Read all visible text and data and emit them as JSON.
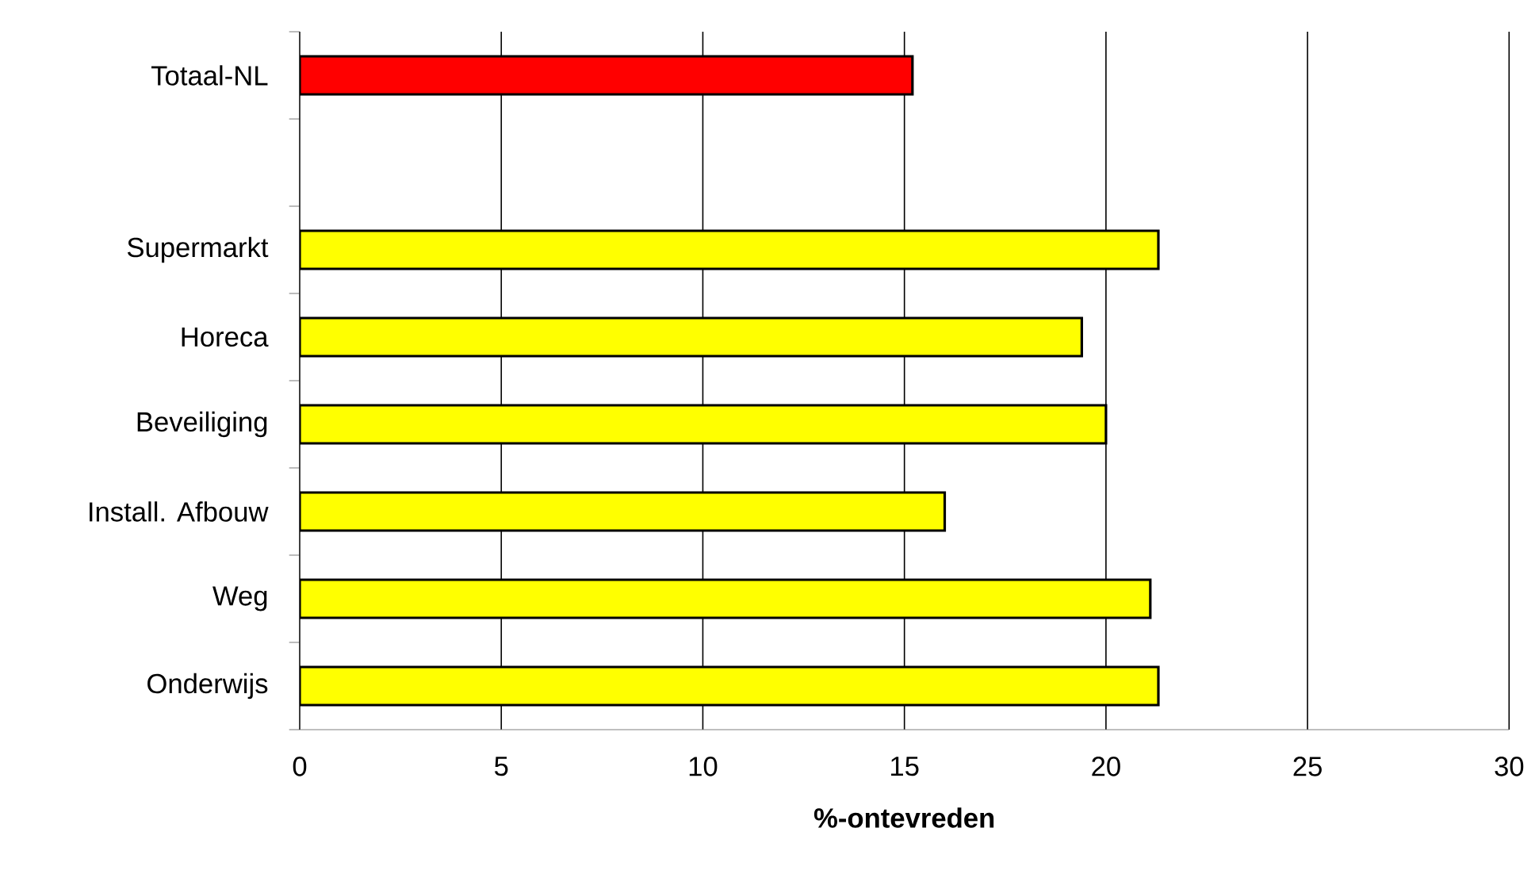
{
  "chart_data": {
    "type": "bar",
    "orientation": "horizontal",
    "categories": [
      "Totaal-NL",
      null,
      "Supermarkt",
      "Horeca",
      "Beveiliging",
      "Install. Afbouw",
      "Weg",
      "Onderwijs"
    ],
    "values": [
      15.2,
      null,
      21.3,
      19.4,
      20.0,
      16.0,
      21.1,
      21.3
    ],
    "colors": [
      "#ff0000",
      "#ffff00",
      "#ffff00",
      "#ffff00",
      "#ffff00",
      "#ffff00",
      "#ffff00",
      "#ffff00"
    ],
    "xlabel": "%-ontevreden",
    "xlim": [
      0,
      30
    ],
    "xticks": [
      0,
      5,
      10,
      15,
      20,
      25,
      30
    ],
    "grid": "x"
  }
}
